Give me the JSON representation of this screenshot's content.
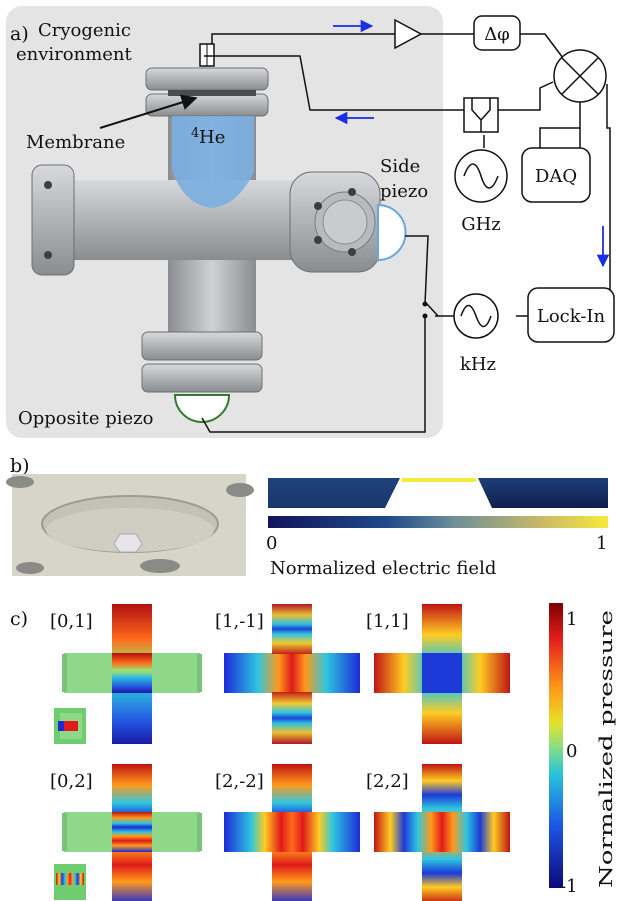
{
  "panel_a": {
    "label": "a)",
    "environment_line1": "Cryogenic",
    "environment_line2": "environment",
    "membrane": "Membrane",
    "helium_sup": "4",
    "helium": "He",
    "side_piezo_line1": "Side",
    "side_piezo_line2": "piezo",
    "opposite_piezo": "Opposite piezo",
    "phase": "Δφ",
    "daq": "DAQ",
    "ghz": "GHz",
    "khz": "kHz",
    "lockin": "Lock-In"
  },
  "panel_b": {
    "label": "b)",
    "colorbar_min": "0",
    "colorbar_max": "1",
    "colorbar_label": "Normalized electric field"
  },
  "panel_c": {
    "label": "c)",
    "modes": [
      {
        "label": "[0,1]"
      },
      {
        "label": "[1,-1]"
      },
      {
        "label": "[1,1]"
      },
      {
        "label": "[0,2]"
      },
      {
        "label": "[2,-2]"
      },
      {
        "label": "[2,2]"
      }
    ],
    "colorbar_max": "1",
    "colorbar_mid": "0",
    "colorbar_min": "-1",
    "colorbar_label": "Normalized pressure"
  },
  "colors": {
    "environment_bg": "#e4e4e4",
    "helium": "#7aaee0",
    "arrow": "#1a2ee6",
    "side_piezo": "#6aa6de",
    "opposite_piezo": "#2e7d2e"
  }
}
